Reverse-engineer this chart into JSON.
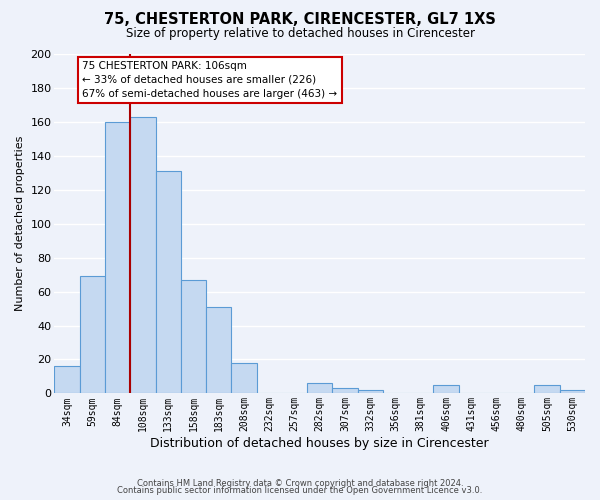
{
  "title": "75, CHESTERTON PARK, CIRENCESTER, GL7 1XS",
  "subtitle": "Size of property relative to detached houses in Cirencester",
  "xlabel": "Distribution of detached houses by size in Cirencester",
  "ylabel": "Number of detached properties",
  "bar_color": "#c5d9f1",
  "bar_edge_color": "#5b9bd5",
  "background_color": "#eef2fa",
  "grid_color": "#ffffff",
  "categories": [
    "34sqm",
    "59sqm",
    "84sqm",
    "108sqm",
    "133sqm",
    "158sqm",
    "183sqm",
    "208sqm",
    "232sqm",
    "257sqm",
    "282sqm",
    "307sqm",
    "332sqm",
    "356sqm",
    "381sqm",
    "406sqm",
    "431sqm",
    "456sqm",
    "480sqm",
    "505sqm",
    "530sqm"
  ],
  "values": [
    16,
    69,
    160,
    163,
    131,
    67,
    51,
    18,
    0,
    0,
    6,
    3,
    2,
    0,
    0,
    5,
    0,
    0,
    0,
    5,
    2
  ],
  "ylim": [
    0,
    200
  ],
  "yticks": [
    0,
    20,
    40,
    60,
    80,
    100,
    120,
    140,
    160,
    180,
    200
  ],
  "marker_color": "#aa0000",
  "annotation_title": "75 CHESTERTON PARK: 106sqm",
  "annotation_line1": "← 33% of detached houses are smaller (226)",
  "annotation_line2": "67% of semi-detached houses are larger (463) →",
  "annotation_box_color": "#ffffff",
  "annotation_edge_color": "#cc0000",
  "footer_line1": "Contains HM Land Registry data © Crown copyright and database right 2024.",
  "footer_line2": "Contains public sector information licensed under the Open Government Licence v3.0."
}
